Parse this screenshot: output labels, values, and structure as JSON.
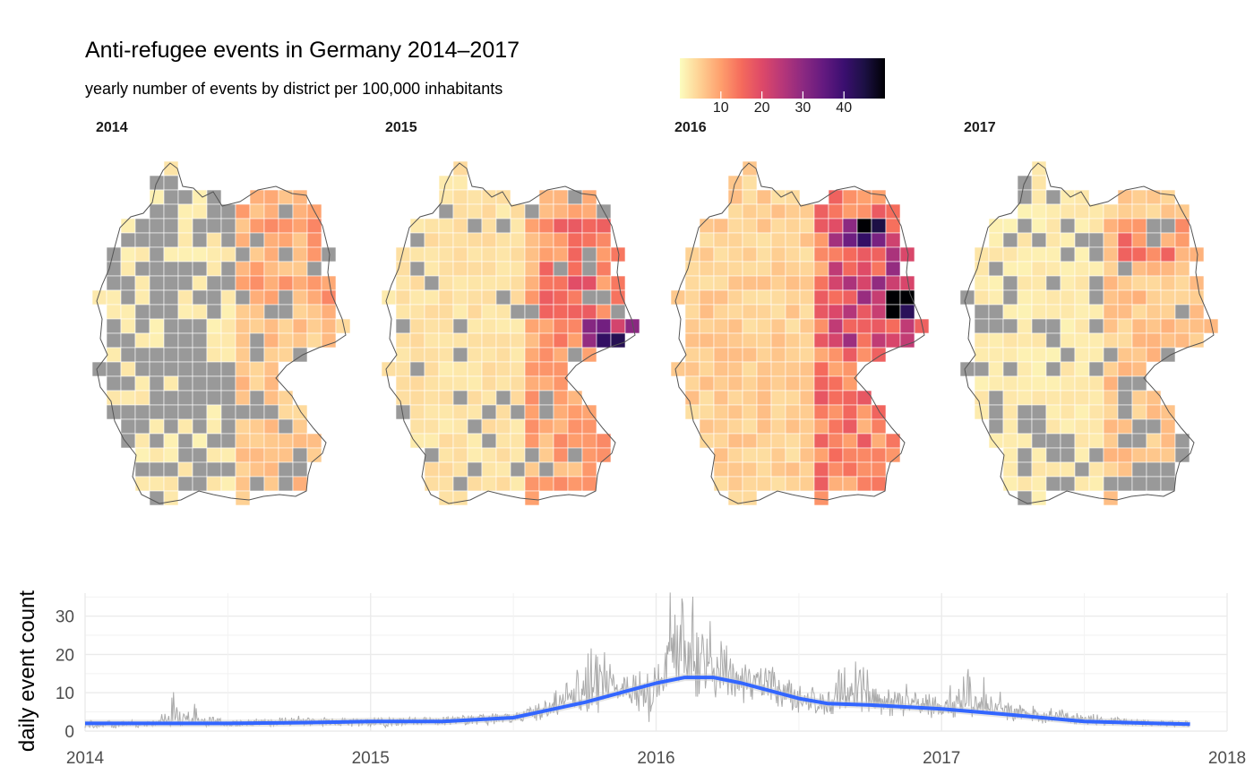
{
  "title": "Anti-refugee events in Germany 2014–2017",
  "subtitle": "yearly number of events by district per 100,000 inhabitants",
  "legend": {
    "breaks": [
      "10",
      "20",
      "30",
      "40"
    ],
    "colors": [
      "#fcfdbf",
      "#fecf92",
      "#fe9f6d",
      "#f56b5c",
      "#de4968",
      "#b73779",
      "#8c2981",
      "#641a80",
      "#3b0f70",
      "#1c1044",
      "#000004"
    ]
  },
  "facets": [
    {
      "label": "2014"
    },
    {
      "label": "2015"
    },
    {
      "label": "2016"
    },
    {
      "label": "2017"
    }
  ],
  "chart_data": [
    {
      "type": "heatmap",
      "description_of_values": "choropleth maps; four yearly facets",
      "facets": [
        "2014",
        "2015",
        "2016",
        "2017"
      ],
      "color_scale": {
        "min": 0,
        "max": 50,
        "breaks": [
          10,
          20,
          30,
          40
        ],
        "palette": "magma (reversed)",
        "no_data_color": "#999999"
      }
    },
    {
      "type": "line",
      "xlabel": "",
      "ylabel": "daily event count",
      "x_ticks": [
        "2014",
        "2015",
        "2016",
        "2017",
        "2018"
      ],
      "y_ticks": [
        "0",
        "10",
        "20",
        "30"
      ],
      "xlim": [
        2014.0,
        2018.0
      ],
      "ylim": [
        0,
        36
      ],
      "series": [
        {
          "kind": "raw-daily",
          "color": "#aaaaaa",
          "x": [
            2014.0,
            2014.25,
            2014.3,
            2014.5,
            2014.75,
            2015.0,
            2015.25,
            2015.5,
            2015.6,
            2015.7,
            2015.8,
            2015.9,
            2016.0,
            2016.05,
            2016.1,
            2016.15,
            2016.2,
            2016.3,
            2016.4,
            2016.5,
            2016.6,
            2016.7,
            2016.8,
            2016.9,
            2017.0,
            2017.1,
            2017.25,
            2017.4,
            2017.5,
            2017.6,
            2017.75,
            2017.87
          ],
          "y": [
            1,
            2,
            8,
            2,
            3,
            2,
            3,
            3,
            6,
            12,
            20,
            9,
            8,
            32,
            35,
            28,
            22,
            15,
            12,
            9,
            8,
            18,
            10,
            8,
            7,
            13,
            6,
            5,
            4,
            3,
            2,
            2
          ]
        },
        {
          "kind": "smoothed",
          "color": "#3366ff",
          "x": [
            2014.0,
            2014.25,
            2014.5,
            2014.75,
            2015.0,
            2015.25,
            2015.5,
            2015.75,
            2016.0,
            2016.1,
            2016.2,
            2016.3,
            2016.4,
            2016.5,
            2016.6,
            2016.75,
            2017.0,
            2017.25,
            2017.5,
            2017.75,
            2017.87
          ],
          "y": [
            2,
            2,
            2,
            2.2,
            2.5,
            2.5,
            3.5,
            7.5,
            12.5,
            14,
            14,
            12.5,
            10.5,
            8.5,
            7.2,
            6.8,
            5.8,
            4.2,
            2.5,
            2,
            1.8
          ]
        }
      ]
    }
  ]
}
